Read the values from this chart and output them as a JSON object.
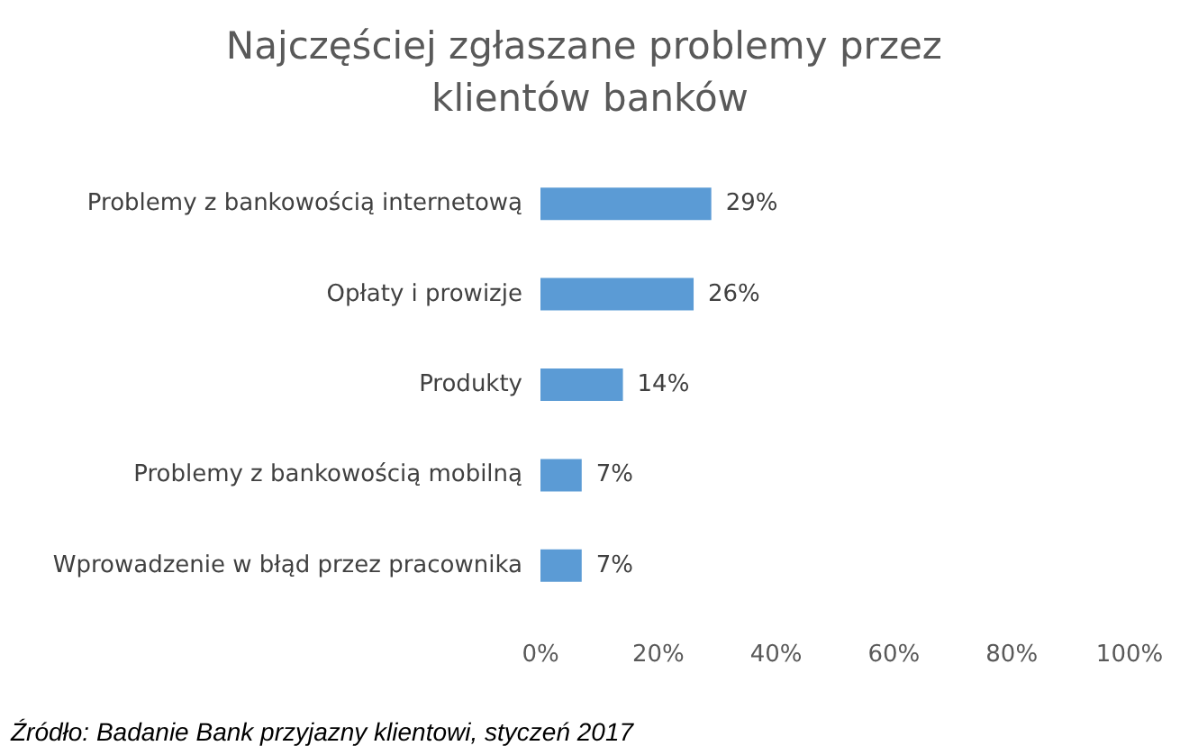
{
  "chart_data": {
    "type": "bar",
    "orientation": "horizontal",
    "title": "Najczęściej zgłaszane problemy przez klientów banków",
    "categories": [
      "Problemy z bankowością internetową",
      "Opłaty i prowizje",
      "Produkty",
      "Problemy z bankowością mobilną",
      "Wprowadzenie w błąd przez pracownika"
    ],
    "values": [
      29,
      26,
      14,
      7,
      7
    ],
    "value_labels": [
      "29%",
      "26%",
      "14%",
      "7%",
      "7%"
    ],
    "color": "#5b9bd5",
    "xlim": [
      0,
      100
    ],
    "xticks": [
      {
        "value": 0,
        "label": "0%"
      },
      {
        "value": 20,
        "label": "20%"
      },
      {
        "value": 40,
        "label": "40%"
      },
      {
        "value": 60,
        "label": "60%"
      },
      {
        "value": 80,
        "label": "80%"
      },
      {
        "value": 100,
        "label": "100%"
      }
    ],
    "grid": false,
    "annotations": [
      "Źródło: Badanie Bank przyjazny klientowi, styczeń 2017"
    ]
  }
}
